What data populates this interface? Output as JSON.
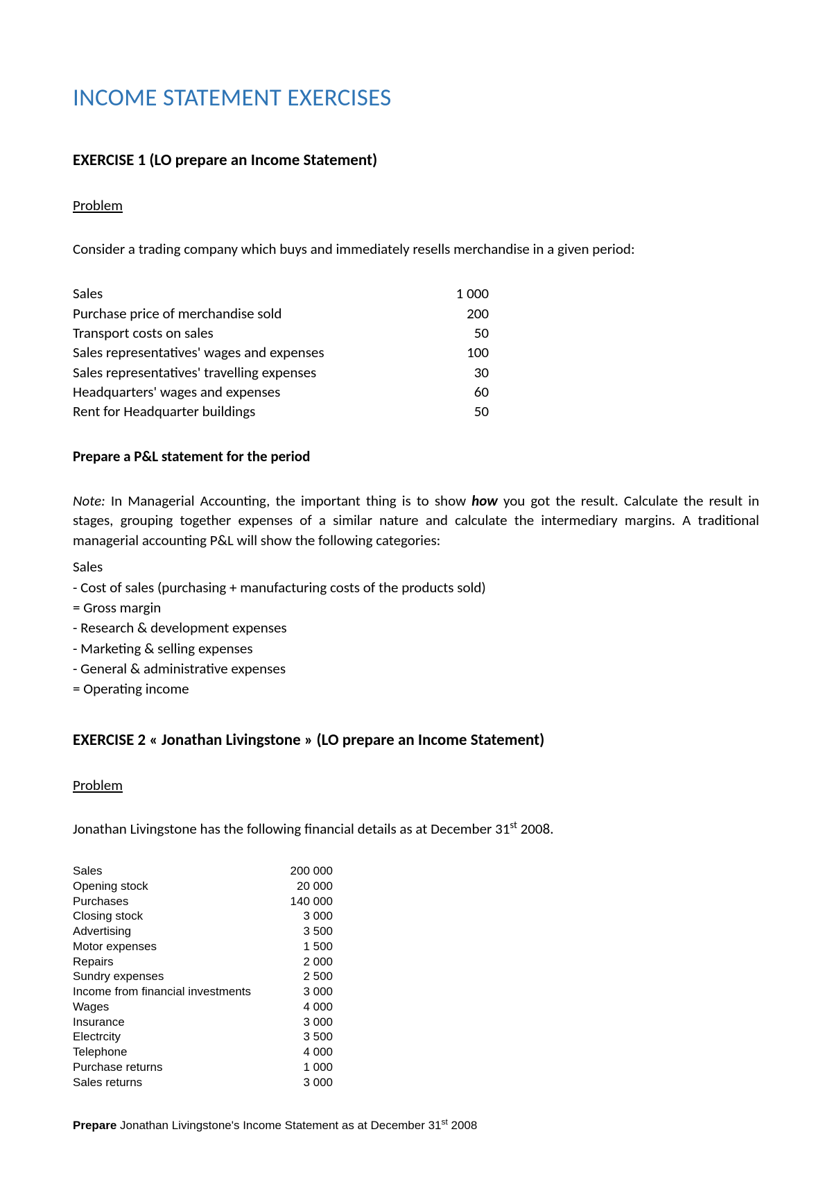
{
  "main_title": "INCOME STATEMENT EXERCISES",
  "exercise1": {
    "title": "EXERCISE 1 (LO prepare an Income Statement)",
    "problem_label": "Problem",
    "intro": "Consider a trading company which buys and immediately resells merchandise in a given period:",
    "table": [
      {
        "label": "Sales",
        "value": "1 000"
      },
      {
        "label": "Purchase price of merchandise sold",
        "value": "200"
      },
      {
        "label": "Transport costs on sales",
        "value": "50"
      },
      {
        "label": "Sales representatives' wages and expenses",
        "value": "100"
      },
      {
        "label": "Sales representatives' travelling expenses",
        "value": "30"
      },
      {
        "label": "Headquarters' wages and expenses",
        "value": "60"
      },
      {
        "label": "Rent for Headquarter buildings",
        "value": "50"
      }
    ],
    "prepare_line": "Prepare a P&L statement for the period",
    "note_prefix": "Note:",
    "note_text_1": " In Managerial Accounting, the important thing is to show ",
    "note_how": "how",
    "note_text_2": " you got the result. Calculate the result in stages, grouping together expenses of a similar nature and calculate the intermediary margins. A traditional managerial accounting P&L will show the following categories:",
    "categories": [
      "Sales",
      "- Cost of sales (purchasing + manufacturing costs of the products sold)",
      "= Gross margin",
      "- Research & development expenses",
      "- Marketing & selling expenses",
      "- General & administrative expenses",
      "= Operating income"
    ]
  },
  "exercise2": {
    "title": "EXERCISE 2 « Jonathan Livingstone » (LO prepare an Income Statement)",
    "problem_label": "Problem",
    "intro_pre": "Jonathan Livingstone has the following financial details as at December 31",
    "intro_sup": "st",
    "intro_post": " 2008.",
    "table": [
      {
        "label": "Sales",
        "value": "200 000"
      },
      {
        "label": "Opening stock",
        "value": "20 000"
      },
      {
        "label": "Purchases",
        "value": "140 000"
      },
      {
        "label": "Closing stock",
        "value": "3 000"
      },
      {
        "label": "Advertising",
        "value": "3 500"
      },
      {
        "label": "Motor expenses",
        "value": "1 500"
      },
      {
        "label": "Repairs",
        "value": "2 000"
      },
      {
        "label": "Sundry expenses",
        "value": "2 500"
      },
      {
        "label": "Income from financial investments",
        "value": "3 000"
      },
      {
        "label": "Wages",
        "value": "4 000"
      },
      {
        "label": "Insurance",
        "value": "3 000"
      },
      {
        "label": "Electrcity",
        "value": "3 500"
      },
      {
        "label": "Telephone",
        "value": "4 000"
      },
      {
        "label": "Purchase returns",
        "value": "1 000"
      },
      {
        "label": "Sales returns",
        "value": "3 000"
      }
    ],
    "final_prepare": "Prepare",
    "final_text_pre": " Jonathan Livingstone's Income Statement as at December 31",
    "final_sup": "st",
    "final_text_post": " 2008"
  },
  "colors": {
    "title_blue": "#2e74b5",
    "text": "#000000",
    "background": "#ffffff"
  }
}
